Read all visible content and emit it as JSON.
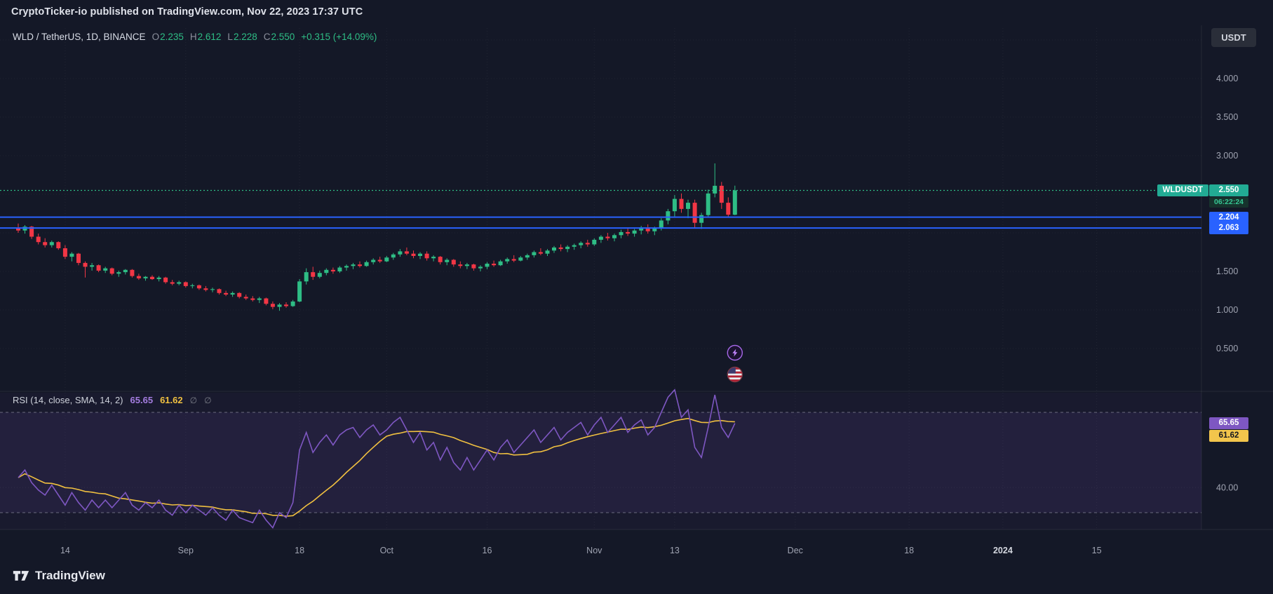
{
  "attribution": {
    "text": "CryptoTicker-io published on TradingView.com, Nov 22, 2023 17:37 UTC"
  },
  "toolbar": {
    "currency_button": "USDT"
  },
  "legend": {
    "symbol": "WLD / TetherUS, 1D, BINANCE",
    "ohlc": [
      {
        "key": "O",
        "value": "2.235"
      },
      {
        "key": "H",
        "value": "2.612"
      },
      {
        "key": "L",
        "value": "2.228"
      },
      {
        "key": "C",
        "value": "2.550"
      }
    ],
    "change": "+0.315 (+14.09%)"
  },
  "price_scale": {
    "ticks": [
      {
        "label": "4.000",
        "value": 4.0
      },
      {
        "label": "3.500",
        "value": 3.5
      },
      {
        "label": "3.000",
        "value": 3.0
      },
      {
        "label": "1.500",
        "value": 1.5
      },
      {
        "label": "1.000",
        "value": 1.0
      },
      {
        "label": "0.500",
        "value": 0.5
      }
    ],
    "symbol_badge": {
      "label": "WLDUSDT",
      "price_label": "2.550",
      "price": 2.55,
      "countdown": "06:22:24"
    },
    "level_badges": [
      {
        "label": "2.204",
        "value": 2.204
      },
      {
        "label": "2.063",
        "value": 2.063
      }
    ]
  },
  "rsi": {
    "legend": "RSI (14, close, SMA, 14, 2)",
    "badges": [
      {
        "label": "65.65",
        "value": 65.65
      },
      {
        "label": "61.62",
        "value": 61.62
      }
    ],
    "empties": [
      "∅",
      "∅"
    ],
    "tick": {
      "label": "40.00",
      "value": 40
    }
  },
  "time_scale": {
    "ticks": [
      {
        "label": "14",
        "i": 7
      },
      {
        "label": "Sep",
        "i": 25
      },
      {
        "label": "18",
        "i": 42
      },
      {
        "label": "Oct",
        "i": 55
      },
      {
        "label": "16",
        "i": 70
      },
      {
        "label": "Nov",
        "i": 86
      },
      {
        "label": "13",
        "i": 98
      },
      {
        "label": "Dec",
        "i": 116
      },
      {
        "label": "18",
        "i": 133
      },
      {
        "label": "2024",
        "i": 147,
        "major": true
      },
      {
        "label": "15",
        "i": 161
      }
    ]
  },
  "footer": {
    "brand": "TradingView"
  },
  "colors": {
    "up": "#2ebd85",
    "down": "#f23645",
    "level_line": "#2962ff",
    "price_line": "#2ebd85",
    "rsi_line": "#7e57c2",
    "rsi_sma": "#f0c040",
    "badge_teal": "#22ab94",
    "badge_blue": "#2962ff",
    "badge_purple": "#7e57c2",
    "badge_yellow": "#f2c54c"
  },
  "chart_data": {
    "type": "candlestick",
    "symbol": "WLDUSDT",
    "exchange": "BINANCE",
    "timeframe": "1D",
    "title": "WLD / TetherUS, 1D, BINANCE",
    "start_date": "2023-08-07",
    "end_date": "2023-11-22",
    "ylim_visible": [
      0.5,
      4.0
    ],
    "grid": true,
    "levels": {
      "current_price": 2.55,
      "support_lines": [
        2.204,
        2.063
      ]
    },
    "ohlc": [
      [
        2.06,
        2.12,
        2.0,
        2.03
      ],
      [
        2.03,
        2.1,
        1.99,
        2.08
      ],
      [
        2.08,
        2.09,
        1.92,
        1.95
      ],
      [
        1.95,
        1.99,
        1.85,
        1.88
      ],
      [
        1.88,
        1.93,
        1.81,
        1.84
      ],
      [
        1.84,
        1.9,
        1.81,
        1.88
      ],
      [
        1.88,
        1.89,
        1.78,
        1.8
      ],
      [
        1.8,
        1.84,
        1.66,
        1.69
      ],
      [
        1.69,
        1.75,
        1.63,
        1.73
      ],
      [
        1.73,
        1.74,
        1.58,
        1.61
      ],
      [
        1.61,
        1.63,
        1.42,
        1.56
      ],
      [
        1.56,
        1.61,
        1.51,
        1.58
      ],
      [
        1.58,
        1.59,
        1.49,
        1.51
      ],
      [
        1.51,
        1.56,
        1.48,
        1.54
      ],
      [
        1.54,
        1.55,
        1.45,
        1.47
      ],
      [
        1.47,
        1.51,
        1.43,
        1.49
      ],
      [
        1.49,
        1.53,
        1.46,
        1.52
      ],
      [
        1.52,
        1.53,
        1.42,
        1.44
      ],
      [
        1.44,
        1.47,
        1.39,
        1.41
      ],
      [
        1.41,
        1.44,
        1.38,
        1.43
      ],
      [
        1.43,
        1.45,
        1.39,
        1.4
      ],
      [
        1.4,
        1.44,
        1.37,
        1.42
      ],
      [
        1.42,
        1.43,
        1.34,
        1.36
      ],
      [
        1.36,
        1.39,
        1.32,
        1.34
      ],
      [
        1.34,
        1.38,
        1.32,
        1.36
      ],
      [
        1.36,
        1.37,
        1.29,
        1.31
      ],
      [
        1.31,
        1.34,
        1.28,
        1.32
      ],
      [
        1.32,
        1.33,
        1.26,
        1.28
      ],
      [
        1.28,
        1.31,
        1.24,
        1.26
      ],
      [
        1.26,
        1.29,
        1.23,
        1.27
      ],
      [
        1.27,
        1.28,
        1.2,
        1.22
      ],
      [
        1.22,
        1.25,
        1.18,
        1.2
      ],
      [
        1.2,
        1.24,
        1.17,
        1.22
      ],
      [
        1.22,
        1.23,
        1.15,
        1.17
      ],
      [
        1.17,
        1.2,
        1.13,
        1.15
      ],
      [
        1.15,
        1.18,
        1.11,
        1.13
      ],
      [
        1.13,
        1.17,
        1.09,
        1.15
      ],
      [
        1.15,
        1.16,
        1.06,
        1.08
      ],
      [
        1.08,
        1.11,
        1.01,
        1.04
      ],
      [
        1.04,
        1.09,
        0.99,
        1.07
      ],
      [
        1.07,
        1.1,
        1.03,
        1.05
      ],
      [
        1.05,
        1.13,
        1.04,
        1.11
      ],
      [
        1.11,
        1.4,
        1.1,
        1.37
      ],
      [
        1.37,
        1.54,
        1.33,
        1.49
      ],
      [
        1.49,
        1.56,
        1.39,
        1.43
      ],
      [
        1.43,
        1.51,
        1.41,
        1.48
      ],
      [
        1.48,
        1.54,
        1.45,
        1.52
      ],
      [
        1.52,
        1.55,
        1.47,
        1.5
      ],
      [
        1.5,
        1.57,
        1.48,
        1.55
      ],
      [
        1.55,
        1.59,
        1.51,
        1.57
      ],
      [
        1.57,
        1.61,
        1.53,
        1.59
      ],
      [
        1.59,
        1.63,
        1.55,
        1.57
      ],
      [
        1.57,
        1.64,
        1.56,
        1.62
      ],
      [
        1.62,
        1.67,
        1.59,
        1.65
      ],
      [
        1.65,
        1.69,
        1.61,
        1.63
      ],
      [
        1.63,
        1.7,
        1.62,
        1.68
      ],
      [
        1.68,
        1.74,
        1.65,
        1.72
      ],
      [
        1.72,
        1.79,
        1.69,
        1.76
      ],
      [
        1.76,
        1.81,
        1.71,
        1.73
      ],
      [
        1.73,
        1.77,
        1.67,
        1.7
      ],
      [
        1.7,
        1.75,
        1.66,
        1.73
      ],
      [
        1.73,
        1.76,
        1.64,
        1.67
      ],
      [
        1.67,
        1.71,
        1.63,
        1.69
      ],
      [
        1.69,
        1.7,
        1.59,
        1.62
      ],
      [
        1.62,
        1.67,
        1.58,
        1.65
      ],
      [
        1.65,
        1.66,
        1.56,
        1.59
      ],
      [
        1.59,
        1.63,
        1.54,
        1.57
      ],
      [
        1.57,
        1.61,
        1.53,
        1.59
      ],
      [
        1.59,
        1.6,
        1.51,
        1.54
      ],
      [
        1.54,
        1.58,
        1.5,
        1.56
      ],
      [
        1.56,
        1.62,
        1.53,
        1.6
      ],
      [
        1.6,
        1.64,
        1.56,
        1.58
      ],
      [
        1.58,
        1.65,
        1.57,
        1.63
      ],
      [
        1.63,
        1.68,
        1.6,
        1.66
      ],
      [
        1.66,
        1.71,
        1.62,
        1.64
      ],
      [
        1.64,
        1.7,
        1.63,
        1.68
      ],
      [
        1.68,
        1.73,
        1.65,
        1.71
      ],
      [
        1.71,
        1.77,
        1.68,
        1.75
      ],
      [
        1.75,
        1.8,
        1.71,
        1.73
      ],
      [
        1.73,
        1.79,
        1.7,
        1.77
      ],
      [
        1.77,
        1.83,
        1.74,
        1.81
      ],
      [
        1.81,
        1.85,
        1.76,
        1.79
      ],
      [
        1.79,
        1.84,
        1.75,
        1.82
      ],
      [
        1.82,
        1.86,
        1.78,
        1.84
      ],
      [
        1.84,
        1.89,
        1.8,
        1.87
      ],
      [
        1.87,
        1.91,
        1.82,
        1.85
      ],
      [
        1.85,
        1.93,
        1.83,
        1.91
      ],
      [
        1.91,
        1.97,
        1.87,
        1.95
      ],
      [
        1.95,
        2.0,
        1.9,
        1.93
      ],
      [
        1.93,
        1.99,
        1.89,
        1.97
      ],
      [
        1.97,
        2.04,
        1.93,
        2.01
      ],
      [
        2.01,
        2.07,
        1.96,
        1.99
      ],
      [
        1.99,
        2.05,
        1.95,
        2.03
      ],
      [
        2.03,
        2.09,
        1.98,
        2.07
      ],
      [
        2.07,
        2.11,
        1.99,
        2.02
      ],
      [
        2.02,
        2.08,
        1.97,
        2.06
      ],
      [
        2.06,
        2.19,
        2.03,
        2.16
      ],
      [
        2.16,
        2.31,
        2.11,
        2.28
      ],
      [
        2.28,
        2.49,
        2.21,
        2.44
      ],
      [
        2.44,
        2.51,
        2.26,
        2.31
      ],
      [
        2.31,
        2.43,
        2.19,
        2.39
      ],
      [
        2.39,
        2.43,
        2.06,
        2.13
      ],
      [
        2.13,
        2.26,
        2.05,
        2.23
      ],
      [
        2.23,
        2.56,
        2.21,
        2.51
      ],
      [
        2.51,
        2.9,
        2.46,
        2.61
      ],
      [
        2.61,
        2.66,
        2.31,
        2.39
      ],
      [
        2.39,
        2.46,
        2.21,
        2.235
      ],
      [
        2.235,
        2.612,
        2.228,
        2.55
      ]
    ],
    "indicator": {
      "name": "RSI",
      "length": 14,
      "source": "close",
      "smoothing": "SMA 14",
      "band": [
        30,
        70
      ],
      "current": 65.65,
      "sma_current": 61.62,
      "values": [
        44,
        47,
        42,
        39,
        37,
        41,
        37,
        33,
        38,
        34,
        31,
        35,
        32,
        35,
        32,
        35,
        38,
        33,
        31,
        34,
        32,
        35,
        31,
        29,
        33,
        30,
        33,
        31,
        29,
        32,
        29,
        27,
        31,
        28,
        27,
        26,
        31,
        27,
        24,
        30,
        28,
        34,
        55,
        62,
        54,
        58,
        61,
        57,
        61,
        63,
        64,
        60,
        63,
        65,
        61,
        63,
        66,
        68,
        63,
        58,
        62,
        55,
        58,
        51,
        56,
        50,
        47,
        52,
        47,
        51,
        55,
        51,
        56,
        59,
        54,
        57,
        60,
        63,
        58,
        61,
        64,
        59,
        62,
        64,
        66,
        61,
        65,
        68,
        62,
        65,
        68,
        62,
        65,
        67,
        61,
        64,
        70,
        76,
        79,
        68,
        71,
        56,
        52,
        64,
        77,
        64,
        60,
        65.65
      ]
    },
    "event_markers": [
      "lightning",
      "us-flag"
    ]
  }
}
